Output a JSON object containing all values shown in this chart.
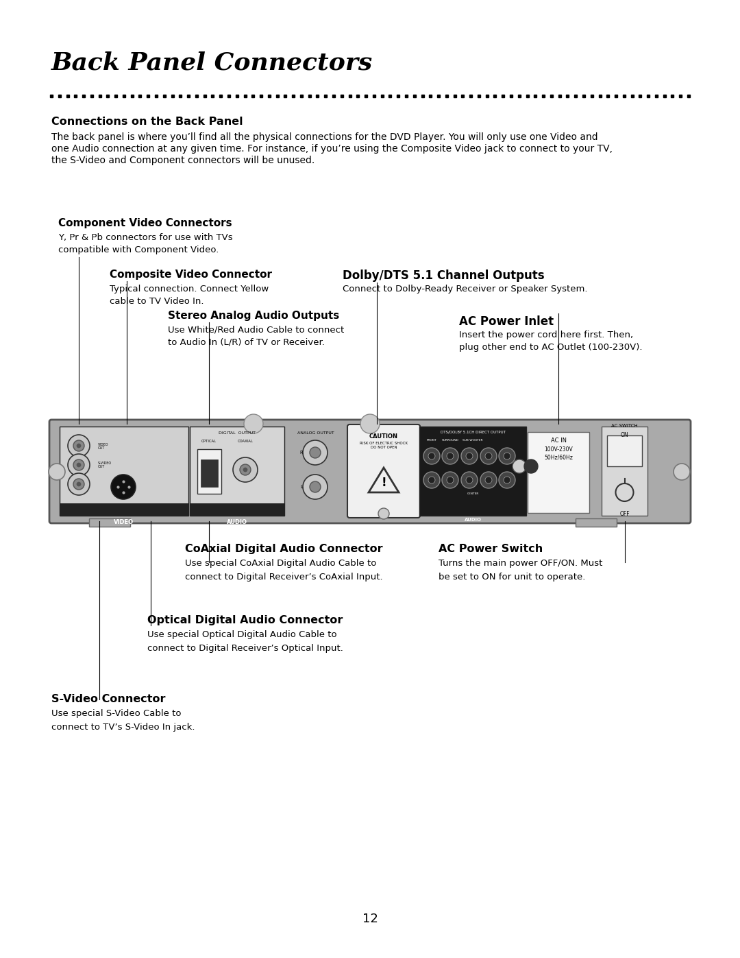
{
  "title": "Back Panel Connectors",
  "page_number": "12",
  "background_color": "#ffffff",
  "section_header": "Connections on the Back Panel",
  "section_body_line1": "The back panel is where you’ll find all the physical connections for the DVD Player. You will only use one Video and",
  "section_body_line2": "one Audio connection at any given time. For instance, if you’re using the Composite Video jack to connect to your TV,",
  "section_body_line3": "the S-Video and Component connectors will be unused.",
  "comp_video_title": "Component Video Connectors",
  "comp_video_body1": "Y, Pr & Pb connectors for use with TVs",
  "comp_video_body2": "compatible with Component Video.",
  "composite_title": "Composite Video Connector",
  "composite_body1": "Typical connection. Connect Yellow",
  "composite_body2": "cable to TV Video In.",
  "stereo_title": "Stereo Analog Audio Outputs",
  "stereo_body1": "Use White/Red Audio Cable to connect",
  "stereo_body2": "to Audio In (L/R) of TV or Receiver.",
  "dolby_title": "Dolby/DTS 5.1 Channel Outputs",
  "dolby_body1": "Connect to Dolby-Ready Receiver or Speaker System.",
  "ac_inlet_title": "AC Power Inlet",
  "ac_inlet_body1": "Insert the power cord here first. Then,",
  "ac_inlet_body2": "plug other end to AC Outlet (100-230V).",
  "coaxial_title": "CoAxial Digital Audio Connector",
  "coaxial_body1": "Use special CoAxial Digital Audio Cable to",
  "coaxial_body2": "connect to Digital Receiver’s CoAxial Input.",
  "ac_switch_title": "AC Power Switch",
  "ac_switch_body1": "Turns the main power OFF/ON. Must",
  "ac_switch_body2": "be set to ON for unit to operate.",
  "optical_title": "Optical Digital Audio Connector",
  "optical_body1": "Use special Optical Digital Audio Cable to",
  "optical_body2": "connect to Digital Receiver’s Optical Input.",
  "svideo_title": "S-Video Connector",
  "svideo_body1": "Use special S-Video Cable to",
  "svideo_body2": "connect to TV’s S-Video In jack."
}
